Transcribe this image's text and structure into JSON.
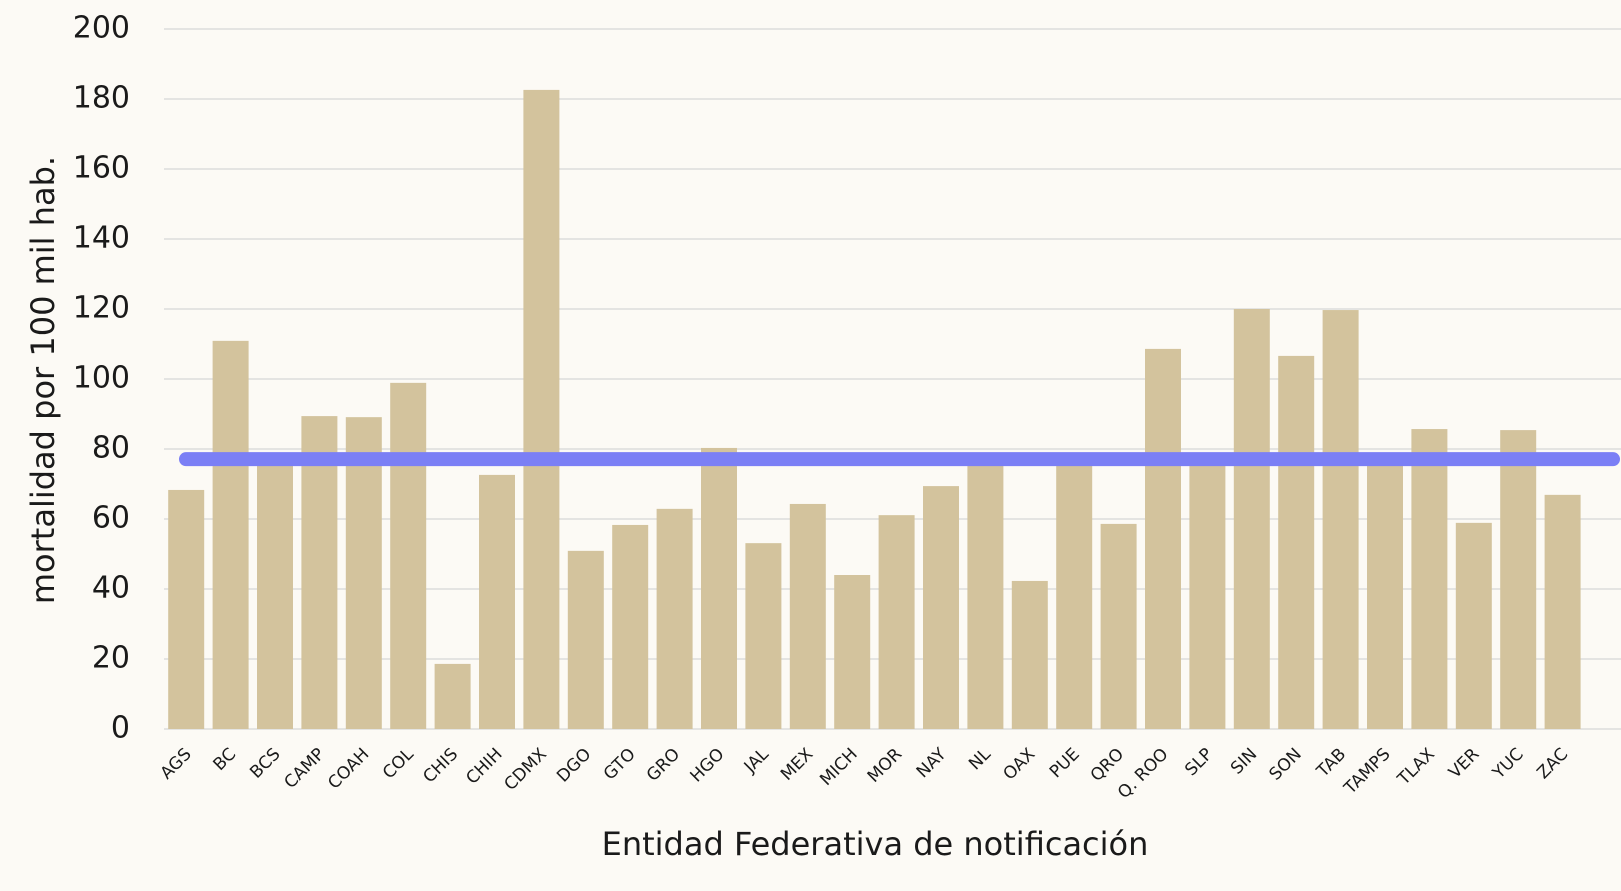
{
  "chart_data": {
    "type": "bar",
    "y_label": "mortalidad por 100 mil hab.",
    "x_label": "Entidad Federativa de notificación",
    "categories": [
      "AGS",
      "BC",
      "BCS",
      "CAMP",
      "COAH",
      "COL",
      "CHIS",
      "CHIH",
      "CDMX",
      "DGO",
      "GTO",
      "GRO",
      "HGO",
      "JAL",
      "MEX",
      "MICH",
      "MOR",
      "NAY",
      "NL",
      "OAX",
      "PUE",
      "QRO",
      "Q. ROO",
      "SLP",
      "SIN",
      "SON",
      "TAB",
      "TAMPS",
      "TLAX",
      "VER",
      "YUC",
      "ZAC"
    ],
    "values": [
      68.3,
      110.9,
      76,
      89.4,
      89.1,
      98.9,
      18.6,
      72.6,
      182.6,
      50.9,
      58.3,
      62.9,
      80.3,
      53.1,
      64.3,
      44,
      61.1,
      69.4,
      76,
      42.3,
      76,
      58.6,
      108.6,
      76,
      120,
      106.6,
      119.7,
      76,
      85.7,
      58.9,
      85.4,
      66.9
    ],
    "color": "#d3c39d",
    "reference_line": {
      "value": 77.1,
      "color": "#7b7ff5"
    },
    "ylim": [
      0,
      200
    ],
    "yticks": [
      0,
      20,
      40,
      60,
      80,
      100,
      120,
      140,
      160,
      180,
      200
    ],
    "grid": true
  }
}
